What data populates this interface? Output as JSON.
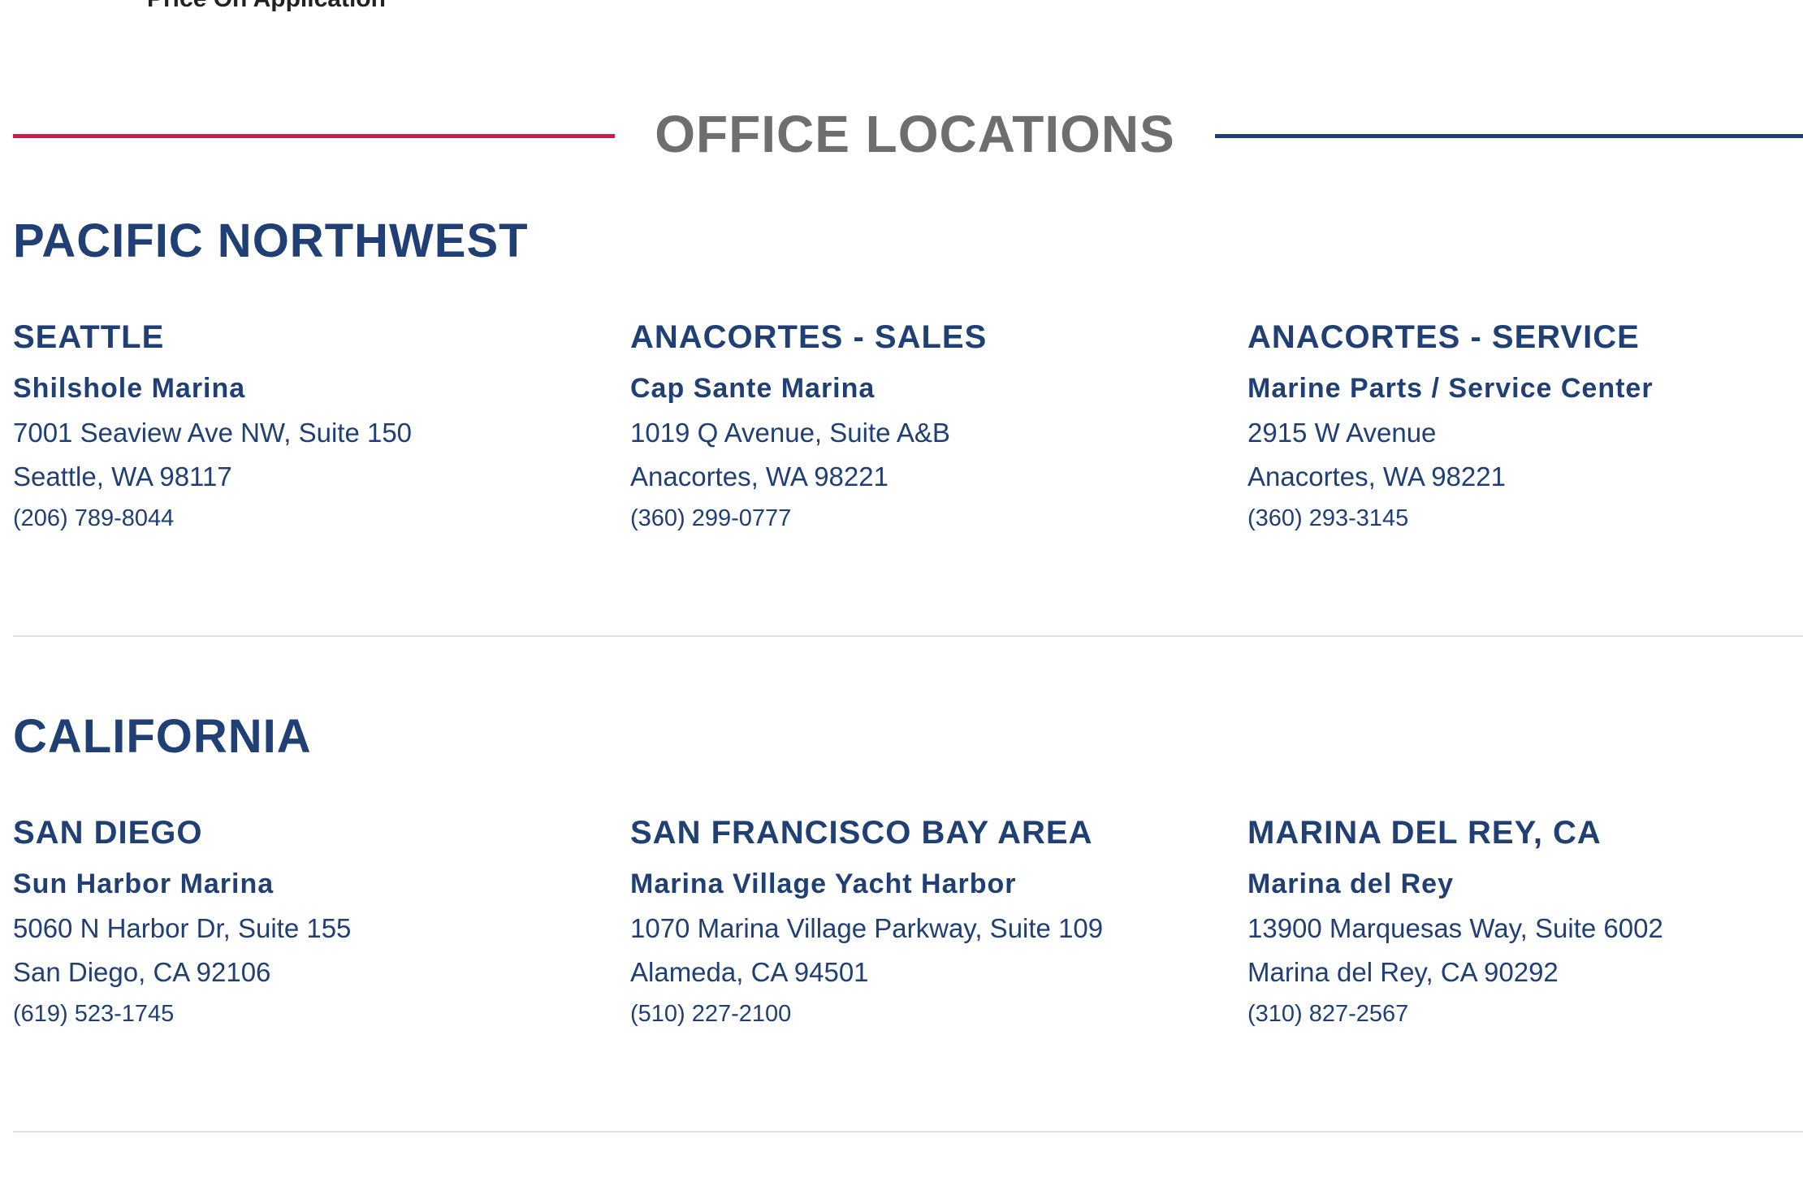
{
  "price_note": "Price On Application",
  "header": {
    "title": "OFFICE LOCATIONS"
  },
  "colors": {
    "accent_red": "#cc1a4a",
    "brand_blue": "#1f3f75",
    "title_gray": "#6e6e6e"
  },
  "regions": [
    {
      "name": "PACIFIC NORTHWEST",
      "offices": [
        {
          "city": "SEATTLE",
          "marina": "Shilshole Marina",
          "address1": "7001 Seaview Ave NW, Suite 150",
          "address2": "Seattle, WA 98117",
          "phone": "(206) 789-8044"
        },
        {
          "city": "ANACORTES - SALES",
          "marina": "Cap Sante Marina",
          "address1": "1019 Q Avenue, Suite A&B",
          "address2": "Anacortes, WA 98221",
          "phone": "(360) 299-0777"
        },
        {
          "city": "ANACORTES - SERVICE",
          "marina": "Marine Parts / Service Center",
          "address1": "2915 W Avenue",
          "address2": "Anacortes, WA 98221",
          "phone": "(360) 293-3145"
        }
      ]
    },
    {
      "name": "CALIFORNIA",
      "offices": [
        {
          "city": "SAN DIEGO",
          "marina": "Sun Harbor Marina",
          "address1": "5060 N Harbor Dr, Suite 155",
          "address2": "San Diego, CA 92106",
          "phone": "(619) 523-1745"
        },
        {
          "city": "SAN FRANCISCO BAY AREA",
          "marina": "Marina Village Yacht Harbor",
          "address1": "1070 Marina Village Parkway, Suite 109",
          "address2": "Alameda, CA 94501",
          "phone": "(510) 227-2100"
        },
        {
          "city": "MARINA DEL REY, CA",
          "marina": "Marina del Rey",
          "address1": "13900 Marquesas Way, Suite 6002",
          "address2": "Marina del Rey, CA 90292",
          "phone": "(310) 827-2567"
        }
      ]
    }
  ]
}
